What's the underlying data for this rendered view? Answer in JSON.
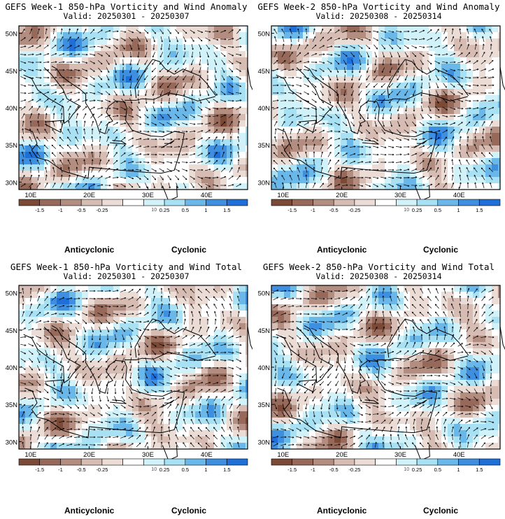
{
  "chart_data": [
    {
      "type": "heatmap",
      "title": "GEFS Week-1 850-hPa Vorticity and Wind Anomaly",
      "subtitle": "Valid: 20250301 - 20250307",
      "xticks": [
        "10E",
        "20E",
        "30E",
        "40E"
      ],
      "yticks": [
        "50N",
        "45N",
        "40N",
        "35N",
        "30N"
      ],
      "xlim": [
        8,
        47
      ],
      "ylim": [
        29,
        51
      ],
      "colorbar_ticks": [
        "-1.5",
        "-1",
        "-0.5",
        "-0.25",
        "0.25",
        "0.5",
        "1",
        "1.5"
      ],
      "colorbar_scale": "10",
      "label_left": "Anticyclonic",
      "label_right": "Cyclonic"
    },
    {
      "type": "heatmap",
      "title": "GEFS Week-2 850-hPa Vorticity and Wind Anomaly",
      "subtitle": "Valid: 20250308 - 20250314",
      "xticks": [
        "10E",
        "20E",
        "30E",
        "40E"
      ],
      "yticks": [
        "50N",
        "45N",
        "40N",
        "35N",
        "30N"
      ],
      "xlim": [
        8,
        47
      ],
      "ylim": [
        29,
        51
      ],
      "colorbar_ticks": [
        "-1.5",
        "-1",
        "-0.5",
        "-0.25",
        "0.25",
        "0.5",
        "1",
        "1.5"
      ],
      "colorbar_scale": "10",
      "label_left": "Anticyclonic",
      "label_right": "Cyclonic"
    },
    {
      "type": "heatmap",
      "title": "GEFS Week-1 850-hPa Vorticity and Wind Total",
      "subtitle": "Valid: 20250301 - 20250307",
      "xticks": [
        "10E",
        "20E",
        "30E",
        "40E"
      ],
      "yticks": [
        "50N",
        "45N",
        "40N",
        "35N",
        "30N"
      ],
      "xlim": [
        8,
        47
      ],
      "ylim": [
        29,
        51
      ],
      "colorbar_ticks": [
        "-1.5",
        "-1",
        "-0.5",
        "-0.25",
        "0.25",
        "0.5",
        "1",
        "1.5"
      ],
      "colorbar_scale": "10",
      "label_left": "Anticyclonic",
      "label_right": "Cyclonic"
    },
    {
      "type": "heatmap",
      "title": "GEFS Week-2 850-hPa Vorticity and Wind Total",
      "subtitle": "Valid: 20250308 - 20250314",
      "xticks": [
        "10E",
        "20E",
        "30E",
        "40E"
      ],
      "yticks": [
        "50N",
        "45N",
        "40N",
        "35N",
        "30N"
      ],
      "xlim": [
        8,
        47
      ],
      "ylim": [
        29,
        51
      ],
      "colorbar_ticks": [
        "-1.5",
        "-1",
        "-0.5",
        "-0.25",
        "0.25",
        "0.5",
        "1",
        "1.5"
      ],
      "colorbar_scale": "10",
      "label_left": "Anticyclonic",
      "label_right": "Cyclonic"
    }
  ],
  "colors": {
    "bins": [
      "#7a4a37",
      "#96695a",
      "#b38e80",
      "#d6bcb3",
      "#ebdcd6",
      "#ffffff",
      "#d2f2fa",
      "#a8e1f4",
      "#6ab8ea",
      "#3f8fe1",
      "#1f6fd9"
    ],
    "anticyclonic_label": "#7a3a20",
    "cyclonic_label": "#1d5fc9",
    "coast": "#000000",
    "arrow": "#000000"
  }
}
